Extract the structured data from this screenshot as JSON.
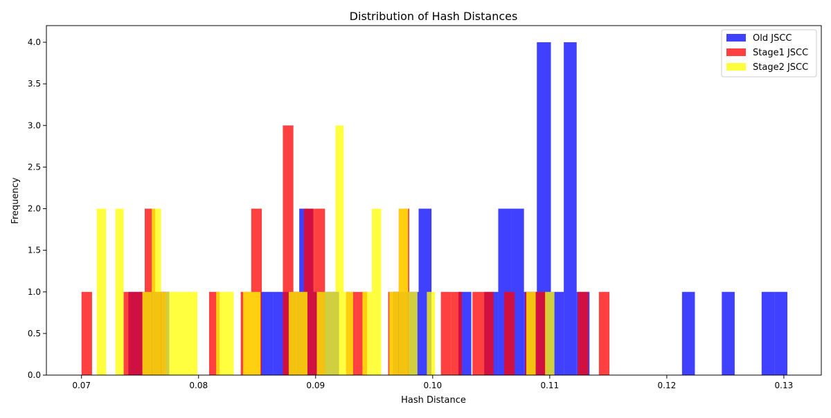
{
  "chart_data": {
    "type": "bar",
    "title": "Distribution of Hash Distances",
    "xlabel": "Hash Distance",
    "ylabel": "Frequency",
    "xlim": [
      0.067,
      0.1332
    ],
    "ylim": [
      0,
      4.2
    ],
    "xticks": [
      "0.07",
      "0.08",
      "0.09",
      "0.10",
      "0.11",
      "0.12",
      "0.13"
    ],
    "yticks": [
      "0.0",
      "0.5",
      "1.0",
      "1.5",
      "2.0",
      "2.5",
      "3.0",
      "3.5",
      "4.0"
    ],
    "legend_position": "top-right",
    "grid": false,
    "series": [
      {
        "name": "Old JSCC",
        "color": "#0000ff",
        "alpha": 0.75,
        "bins": [
          [
            0.074,
            0.0752,
            1
          ],
          [
            0.0752,
            0.0764,
            1
          ],
          [
            0.0764,
            0.0775,
            1
          ],
          [
            0.0853,
            0.0864,
            1
          ],
          [
            0.0864,
            0.0875,
            1
          ],
          [
            0.0875,
            0.0886,
            1
          ],
          [
            0.0886,
            0.0898,
            2
          ],
          [
            0.0898,
            0.0909,
            1
          ],
          [
            0.0909,
            0.092,
            1
          ],
          [
            0.0966,
            0.0977,
            1
          ],
          [
            0.0977,
            0.0988,
            1
          ],
          [
            0.0988,
            0.0999,
            2
          ],
          [
            0.1022,
            0.1033,
            1
          ],
          [
            0.1044,
            0.1056,
            1
          ],
          [
            0.1056,
            0.1067,
            2
          ],
          [
            0.1067,
            0.1078,
            2
          ],
          [
            0.1078,
            0.1089,
            1
          ],
          [
            0.1089,
            0.1101,
            4
          ],
          [
            0.1101,
            0.1112,
            1
          ],
          [
            0.1112,
            0.1123,
            4
          ],
          [
            0.1123,
            0.1134,
            1
          ],
          [
            0.1213,
            0.1224,
            1
          ],
          [
            0.1247,
            0.1258,
            1
          ],
          [
            0.1281,
            0.1292,
            1
          ],
          [
            0.1292,
            0.1303,
            1
          ]
        ]
      },
      {
        "name": "Stage1 JSCC",
        "color": "#ff0000",
        "alpha": 0.75,
        "bins": [
          [
            0.07,
            0.0709,
            1
          ],
          [
            0.0736,
            0.0745,
            1
          ],
          [
            0.0745,
            0.0754,
            1
          ],
          [
            0.0754,
            0.0763,
            2
          ],
          [
            0.0763,
            0.0772,
            1
          ],
          [
            0.0809,
            0.0818,
            1
          ],
          [
            0.0836,
            0.0845,
            1
          ],
          [
            0.0845,
            0.0854,
            2
          ],
          [
            0.0872,
            0.0881,
            3
          ],
          [
            0.0881,
            0.089,
            1
          ],
          [
            0.089,
            0.0899,
            2
          ],
          [
            0.0899,
            0.0908,
            2
          ],
          [
            0.0926,
            0.0935,
            1
          ],
          [
            0.0935,
            0.0944,
            1
          ],
          [
            0.0962,
            0.0971,
            1
          ],
          [
            0.0971,
            0.098,
            2
          ],
          [
            0.1007,
            0.1016,
            1
          ],
          [
            0.1016,
            0.1025,
            1
          ],
          [
            0.1034,
            0.1043,
            1
          ],
          [
            0.1043,
            0.1052,
            1
          ],
          [
            0.1061,
            0.107,
            1
          ],
          [
            0.1079,
            0.1088,
            1
          ],
          [
            0.1088,
            0.1097,
            1
          ],
          [
            0.1124,
            0.1133,
            1
          ],
          [
            0.1142,
            0.1151,
            1
          ]
        ]
      },
      {
        "name": "Stage2 JSCC",
        "color": "#ffff00",
        "alpha": 0.75,
        "bins": [
          [
            0.0713,
            0.0721,
            2
          ],
          [
            0.0729,
            0.0736,
            2
          ],
          [
            0.0752,
            0.076,
            1
          ],
          [
            0.076,
            0.0768,
            2
          ],
          [
            0.0768,
            0.0776,
            1
          ],
          [
            0.0776,
            0.0783,
            1
          ],
          [
            0.0783,
            0.0791,
            1
          ],
          [
            0.0791,
            0.0799,
            1
          ],
          [
            0.0815,
            0.0822,
            1
          ],
          [
            0.0822,
            0.083,
            1
          ],
          [
            0.0838,
            0.0846,
            1
          ],
          [
            0.0846,
            0.0853,
            1
          ],
          [
            0.0877,
            0.0885,
            1
          ],
          [
            0.0885,
            0.0893,
            1
          ],
          [
            0.0901,
            0.0909,
            1
          ],
          [
            0.0909,
            0.0917,
            1
          ],
          [
            0.0917,
            0.0924,
            3
          ],
          [
            0.0924,
            0.0932,
            1
          ],
          [
            0.094,
            0.0948,
            1
          ],
          [
            0.0948,
            0.0956,
            2
          ],
          [
            0.0963,
            0.0971,
            1
          ],
          [
            0.0971,
            0.0979,
            2
          ],
          [
            0.0979,
            0.0987,
            1
          ],
          [
            0.0995,
            0.1002,
            1
          ],
          [
            0.108,
            0.1088,
            1
          ],
          [
            0.1096,
            0.1104,
            1
          ]
        ]
      }
    ]
  }
}
